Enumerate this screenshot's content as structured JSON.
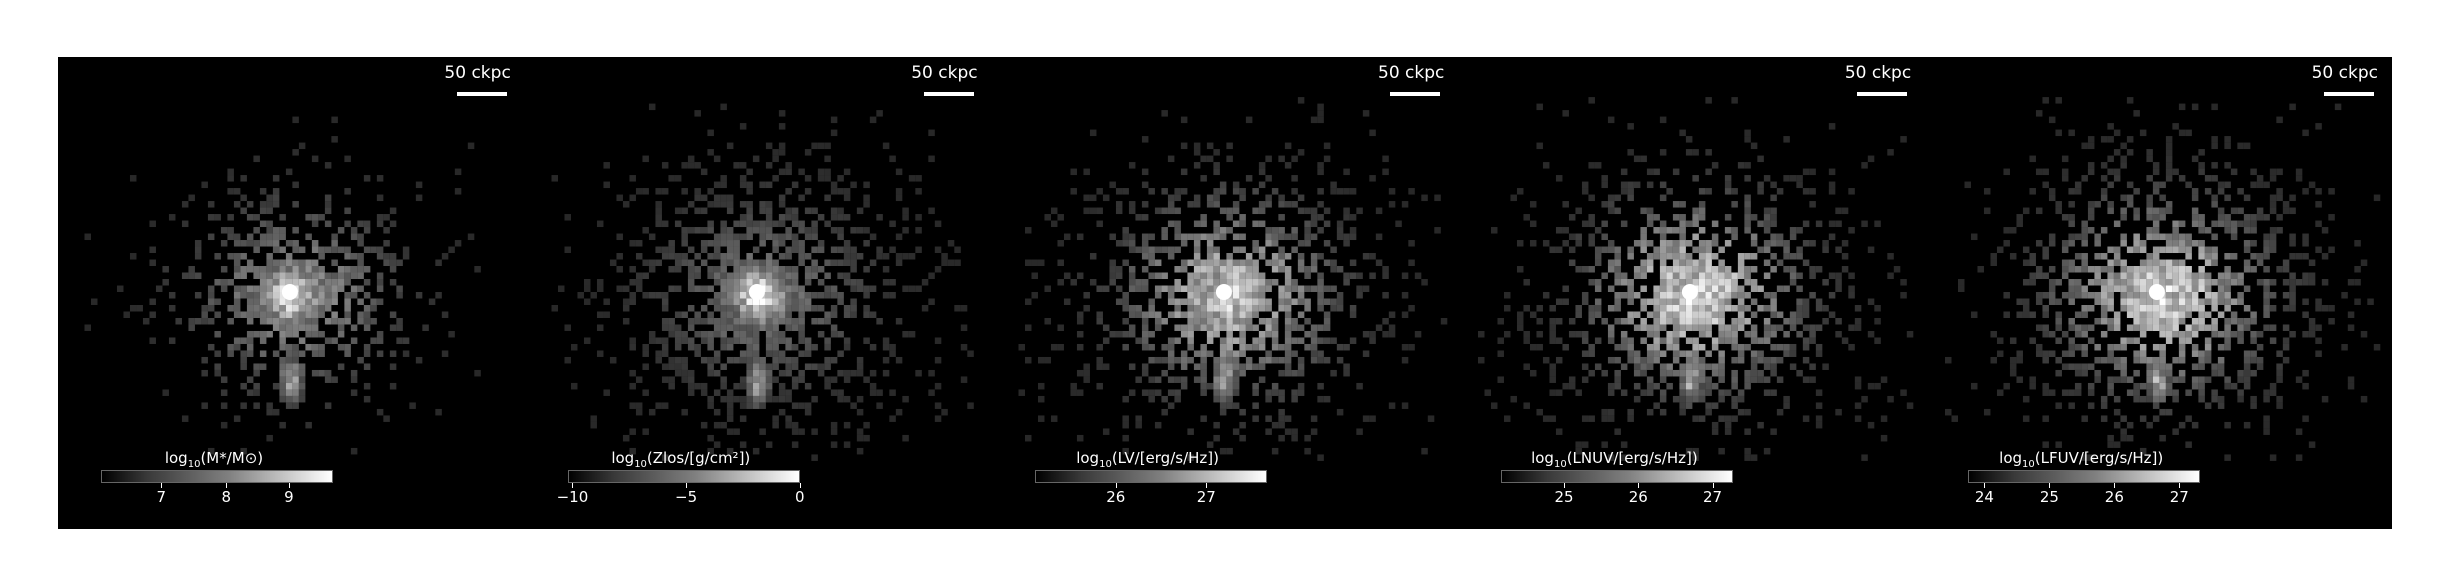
{
  "panels": [
    {
      "scale_label": "50 ckpc",
      "colorbar": {
        "prefix": "log",
        "sub": "10",
        "quantity": "(M*/M⊙)",
        "ticks": [
          "7",
          "8",
          "9"
        ],
        "tick_pos": [
          0.26,
          0.54,
          0.81
        ]
      },
      "field": {
        "spread": 0.55,
        "brightness": 0.55,
        "halo": 0.9
      }
    },
    {
      "scale_label": "50 ckpc",
      "colorbar": {
        "prefix": "log",
        "sub": "10",
        "quantity": "(Zlos/[g/cm²])",
        "ticks": [
          "−10",
          "−5",
          "0"
        ],
        "tick_pos": [
          0.02,
          0.51,
          1.0
        ]
      },
      "field": {
        "spread": 1.0,
        "brightness": 0.45,
        "halo": 0.85
      }
    },
    {
      "scale_label": "50 ckpc",
      "colorbar": {
        "prefix": "log",
        "sub": "10",
        "quantity": "(LV/[erg/s/Hz])",
        "ticks": [
          "26",
          "27"
        ],
        "tick_pos": [
          0.35,
          0.74
        ]
      },
      "field": {
        "spread": 0.95,
        "brightness": 0.75,
        "halo": 1.0
      }
    },
    {
      "scale_label": "50 ckpc",
      "colorbar": {
        "prefix": "log",
        "sub": "10",
        "quantity": "(LNUV/[erg/s/Hz])",
        "ticks": [
          "25",
          "26",
          "27"
        ],
        "tick_pos": [
          0.27,
          0.59,
          0.91
        ]
      },
      "field": {
        "spread": 1.0,
        "brightness": 0.85,
        "halo": 1.0
      }
    },
    {
      "scale_label": "50 ckpc",
      "colorbar": {
        "prefix": "log",
        "sub": "10",
        "quantity": "(LFUV/[erg/s/Hz])",
        "ticks": [
          "24",
          "25",
          "26",
          "27"
        ],
        "tick_pos": [
          0.07,
          0.35,
          0.63,
          0.91
        ]
      },
      "field": {
        "spread": 1.0,
        "brightness": 0.85,
        "halo": 1.0
      }
    }
  ]
}
